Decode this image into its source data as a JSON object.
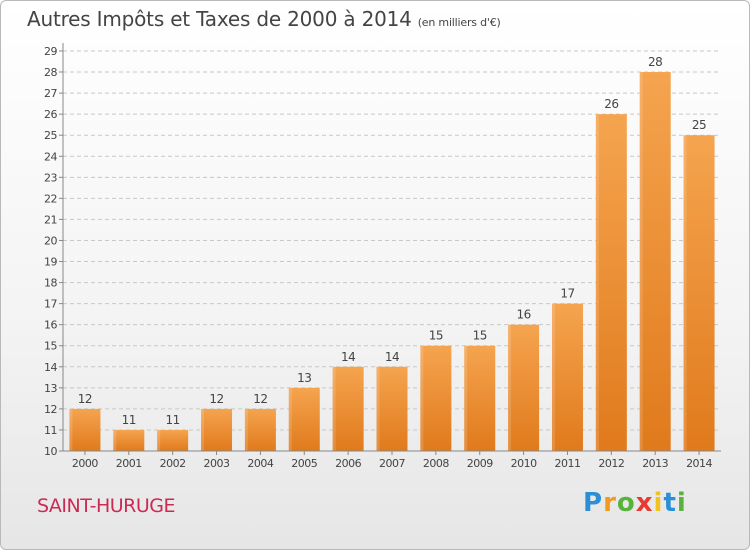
{
  "title": {
    "main": "Autres Impôts et Taxes de 2000 à 2014",
    "unit": "(en milliers d'€)"
  },
  "commune": "SAINT-HURUGE",
  "logo": {
    "letters": [
      "P",
      "r",
      "o",
      "x",
      "i",
      "t",
      "i"
    ],
    "colors": [
      "#2b8fd6",
      "#f29a1f",
      "#59b33a",
      "#e63b2e",
      "#f2c21f",
      "#2b8fd6",
      "#59b33a"
    ]
  },
  "colors": {
    "bar_light": "#f5a44f",
    "bar_dark": "#e07a1c",
    "title": "#444444",
    "commune": "#cc2a55"
  },
  "chart_data": {
    "type": "bar",
    "categories": [
      "2000",
      "2001",
      "2002",
      "2003",
      "2004",
      "2005",
      "2006",
      "2007",
      "2008",
      "2009",
      "2010",
      "2011",
      "2012",
      "2013",
      "2014"
    ],
    "values": [
      12,
      11,
      11,
      12,
      12,
      13,
      14,
      14,
      15,
      15,
      16,
      17,
      26,
      28,
      25
    ],
    "ylim": [
      10,
      29
    ],
    "yticks": [
      10,
      11,
      12,
      13,
      14,
      15,
      16,
      17,
      18,
      19,
      20,
      21,
      22,
      23,
      24,
      25,
      26,
      27,
      28,
      29
    ],
    "grid": "horizontal dashed",
    "data_labels": true
  }
}
